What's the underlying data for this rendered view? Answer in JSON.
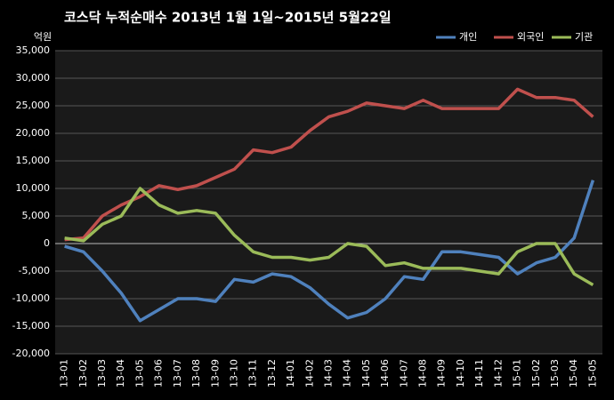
{
  "chart_data": {
    "type": "line",
    "title": "코스닥  누적순매수 2013년 1월 1일~2015년 5월22일",
    "y_label": "억원",
    "categories": [
      "13-01",
      "13-02",
      "13-03",
      "13-04",
      "13-05",
      "13-06",
      "13-07",
      "13-08",
      "13-09",
      "13-10",
      "13-11",
      "13-12",
      "14-01",
      "14-02",
      "14-03",
      "14-04",
      "14-05",
      "14-06",
      "14-07",
      "14-08",
      "14-09",
      "14-10",
      "14-11",
      "14-12",
      "15-01",
      "15-02",
      "15-03",
      "15-04",
      "15-05"
    ],
    "series": [
      {
        "name": "개인",
        "color": "#4f81bd",
        "values": [
          -500,
          -1500,
          -5000,
          -9000,
          -14000,
          -12000,
          -10000,
          -10000,
          -10500,
          -6500,
          -7000,
          -5500,
          -6000,
          -8000,
          -11000,
          -13500,
          -12500,
          -10000,
          -6000,
          -6500,
          -1500,
          -1500,
          -2000,
          -2500,
          -5500,
          -3500,
          -2500,
          1000,
          11500
        ]
      },
      {
        "name": "외국인",
        "color": "#c0504d",
        "values": [
          700,
          1000,
          5000,
          7000,
          8500,
          10500,
          9800,
          10500,
          12000,
          13500,
          17000,
          16500,
          17500,
          20500,
          23000,
          24000,
          25500,
          25000,
          24500,
          26000,
          24500,
          24500,
          24500,
          24500,
          28000,
          26500,
          26500,
          26000,
          23000
        ]
      },
      {
        "name": "기관",
        "color": "#9bbb59",
        "values": [
          1000,
          500,
          3500,
          5000,
          10000,
          7000,
          5500,
          6000,
          5500,
          1500,
          -1500,
          -2500,
          -2500,
          -3000,
          -2500,
          0,
          -500,
          -4000,
          -3500,
          -4500,
          -4500,
          -4500,
          -5000,
          -5500,
          -1500,
          0,
          0,
          -5500,
          -7500
        ]
      }
    ],
    "ylim": [
      -20000,
      35000
    ],
    "yticks": [
      {
        "value": -20000,
        "label": "-20,000"
      },
      {
        "value": -15000,
        "label": "-15,000"
      },
      {
        "value": -10000,
        "label": "-10,000"
      },
      {
        "value": -5000,
        "label": "-5,000"
      },
      0,
      {
        "value": 5000,
        "label": "5,000"
      },
      {
        "value": 10000,
        "label": "10,000"
      },
      {
        "value": 15000,
        "label": "15,000"
      },
      {
        "value": 20000,
        "label": "20,000"
      },
      {
        "value": 25000,
        "label": "25,000"
      },
      {
        "value": 30000,
        "label": "30,000"
      },
      {
        "value": 35000,
        "label": "35,000"
      }
    ],
    "grid": true,
    "legend": "top-right"
  }
}
